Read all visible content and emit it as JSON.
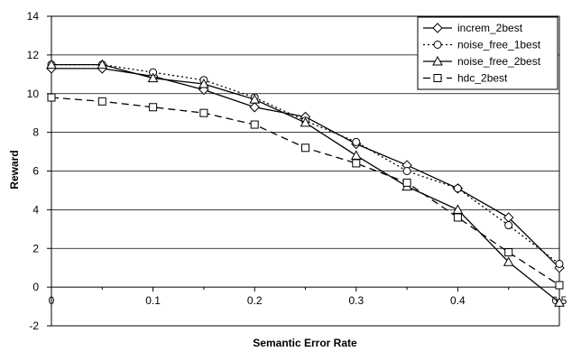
{
  "chart_data": {
    "type": "line",
    "xlabel": "Semantic Error Rate",
    "ylabel": "Reward",
    "xlim": [
      0,
      0.5
    ],
    "ylim": [
      -2,
      14
    ],
    "x_ticks": [
      "0",
      "0.1",
      "0.2",
      "0.3",
      "0.4",
      "0.5"
    ],
    "y_ticks": [
      "-2",
      "0",
      "2",
      "4",
      "6",
      "8",
      "10",
      "12",
      "14"
    ],
    "grid": "horizontal",
    "legend_position": "top-right",
    "x": [
      0,
      0.05,
      0.1,
      0.15,
      0.2,
      0.25,
      0.3,
      0.35,
      0.4,
      0.45,
      0.5
    ],
    "series": [
      {
        "name": "increm_2best",
        "marker": "diamond",
        "line": "solid",
        "values": [
          11.3,
          11.3,
          10.9,
          10.2,
          9.3,
          8.8,
          7.4,
          6.3,
          5.1,
          3.6,
          1.0
        ]
      },
      {
        "name": "noise_free_1best",
        "marker": "circle",
        "line": "dotted",
        "values": [
          11.5,
          11.5,
          11.1,
          10.7,
          9.8,
          8.6,
          7.5,
          6.0,
          5.1,
          3.2,
          1.2
        ]
      },
      {
        "name": "noise_free_2best",
        "marker": "triangle",
        "line": "solid",
        "values": [
          11.5,
          11.5,
          10.8,
          10.5,
          9.7,
          8.5,
          6.8,
          5.2,
          4.0,
          1.3,
          -0.8
        ]
      },
      {
        "name": "hdc_2best",
        "marker": "square",
        "line": "dashed",
        "values": [
          9.8,
          9.6,
          9.3,
          9.0,
          8.4,
          7.2,
          6.4,
          5.4,
          3.6,
          1.8,
          0.1
        ]
      }
    ]
  }
}
